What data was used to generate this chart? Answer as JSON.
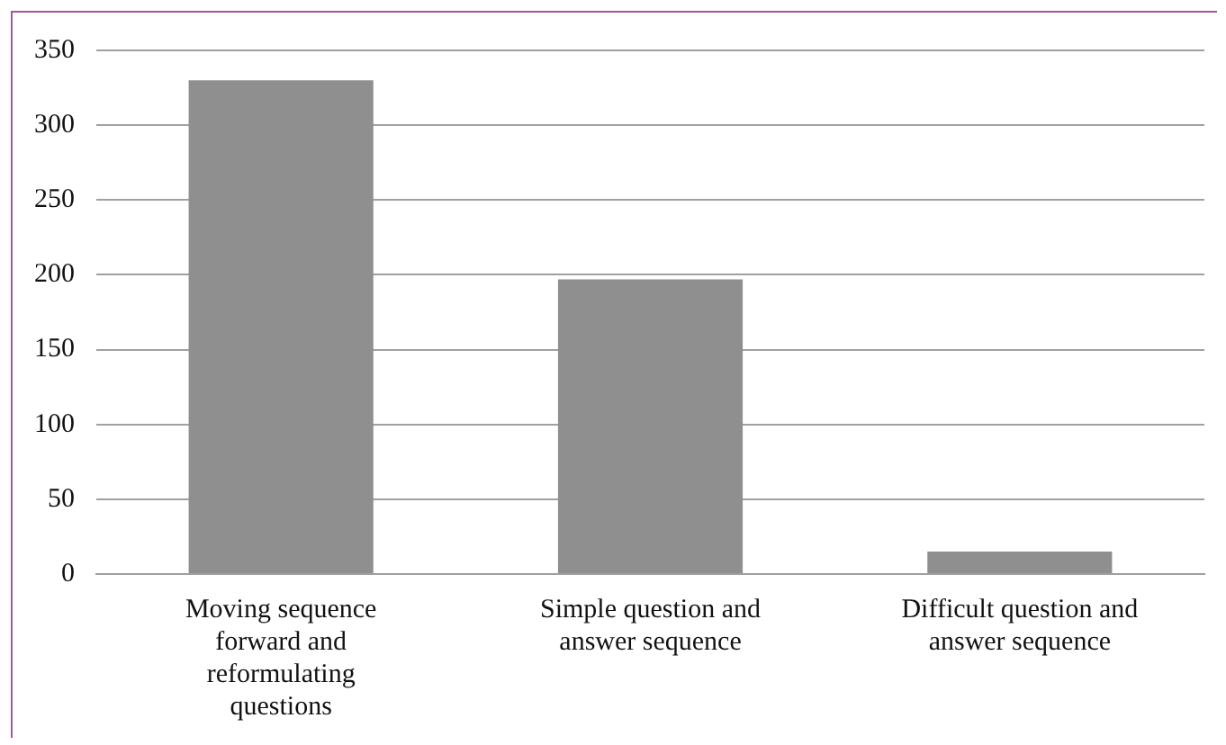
{
  "chart_data": {
    "type": "bar",
    "categories": [
      "Moving sequence forward and reformulating questions",
      "Simple question and answer sequence",
      "Difficult question and answer sequence"
    ],
    "values": [
      330,
      197,
      15
    ],
    "color": "#8f8f8f",
    "ylim": [
      0,
      350
    ],
    "yticks": [
      0,
      50,
      100,
      150,
      200,
      250,
      300,
      350
    ],
    "grid": "y"
  }
}
